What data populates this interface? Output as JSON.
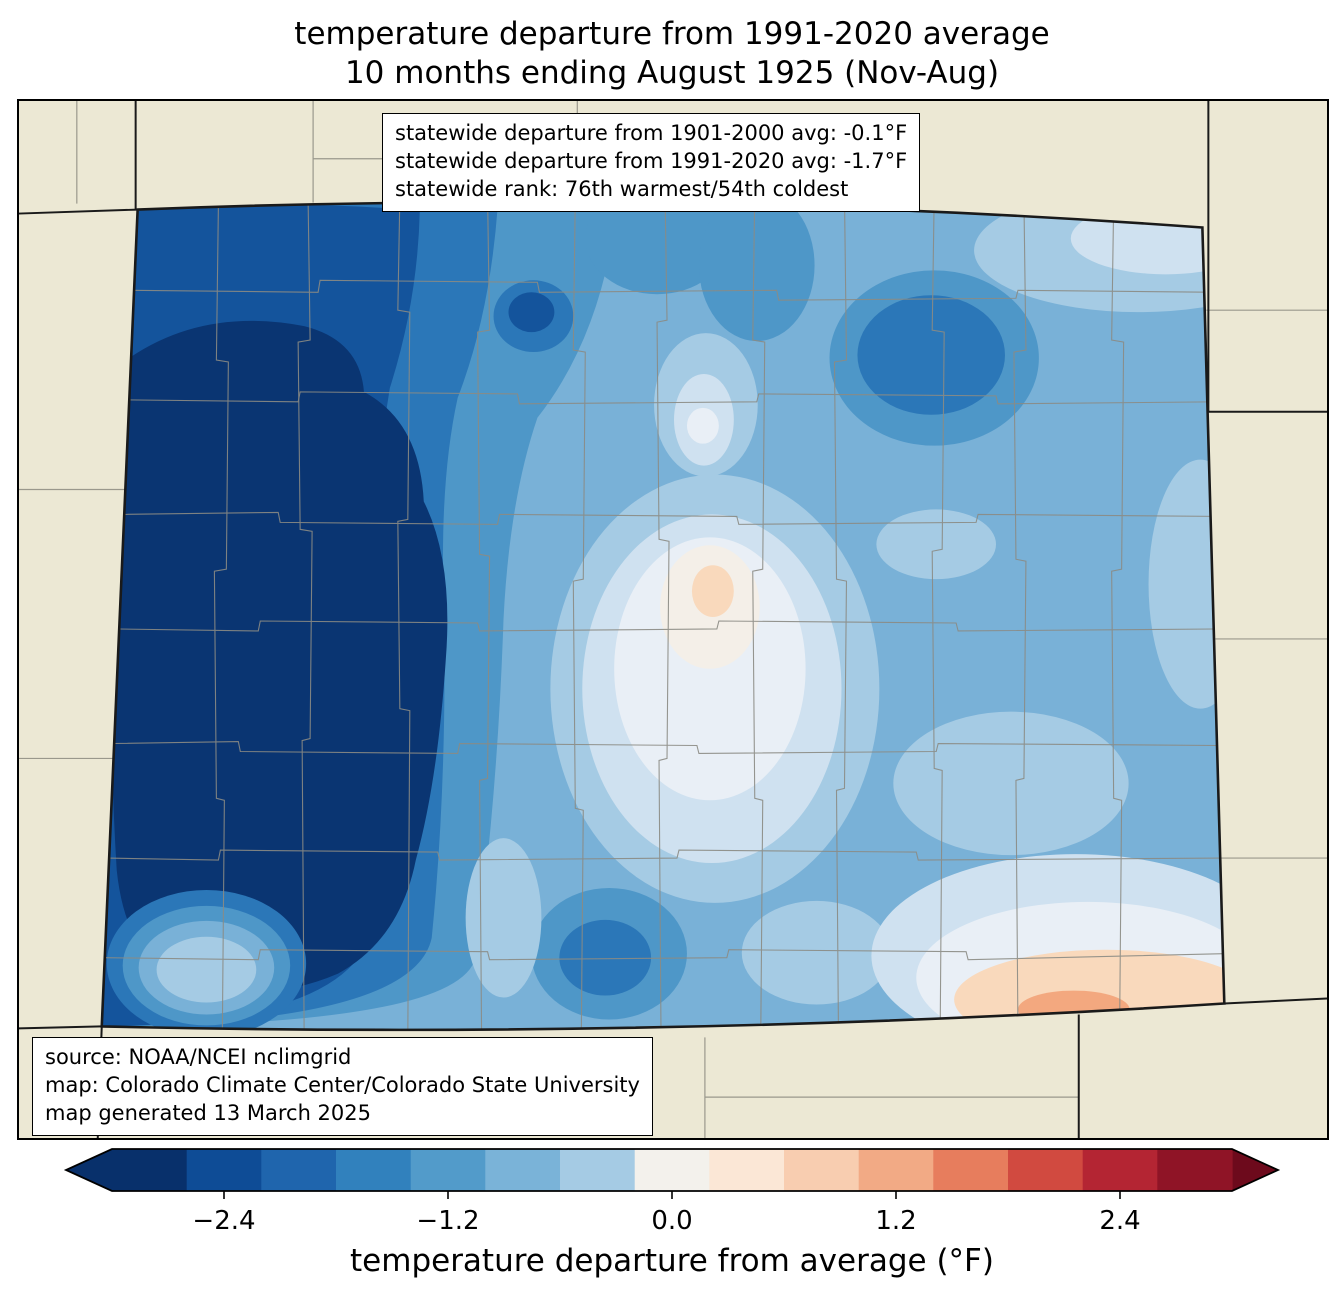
{
  "title": {
    "line1": "temperature departure from 1991-2020 average",
    "line2": "10 months ending August 1925 (Nov-Aug)"
  },
  "stats_box": {
    "lines": [
      "statewide departure from 1901-2000 avg: -0.1°F",
      "statewide departure from 1991-2020 avg: -1.7°F",
      "statewide rank: 76th warmest/54th coldest"
    ]
  },
  "source_box": {
    "lines": [
      "source: NOAA/NCEI nclimgrid",
      "map: Colorado Climate Center/Colorado State University",
      "map generated 13 March 2025"
    ]
  },
  "map": {
    "state": "Colorado",
    "background_color": "#ece8d4",
    "boundary_color": "#1a1a1a",
    "county_line_color": "#8b8b84",
    "fill_levels": {
      "navy": "#0a3572",
      "blue2": "#14549c",
      "blue3": "#2b77b8",
      "blue4": "#4e97c8",
      "blue5": "#79b1d7",
      "blue6": "#a5cbe4",
      "blue7": "#cfe1f0",
      "blue8": "#e9eff6",
      "warm_white": "#f4efe8",
      "peach_light": "#f9d9bc",
      "peach": "#f3a87f"
    }
  },
  "colorbar": {
    "label": "temperature departure from average (°F)",
    "range": [
      -3.0,
      3.0
    ],
    "ticks": [
      {
        "label": "−2.4",
        "value": -2.4
      },
      {
        "label": "−1.2",
        "value": -1.2
      },
      {
        "label": "0.0",
        "value": 0.0
      },
      {
        "label": "1.2",
        "value": 1.2
      },
      {
        "label": "2.4",
        "value": 2.4
      }
    ],
    "segment_colors": [
      "#08306b",
      "#0e4c96",
      "#1f65ad",
      "#3181bd",
      "#529bca",
      "#7ab3d8",
      "#a5cbe4",
      "#f3f1ec",
      "#fbe7d6",
      "#f8cdb0",
      "#f2aa85",
      "#e77d5d",
      "#d14a40",
      "#b42533",
      "#8f1426"
    ],
    "arrow_left_color": "#08306b",
    "arrow_right_color": "#6d0a1c"
  }
}
